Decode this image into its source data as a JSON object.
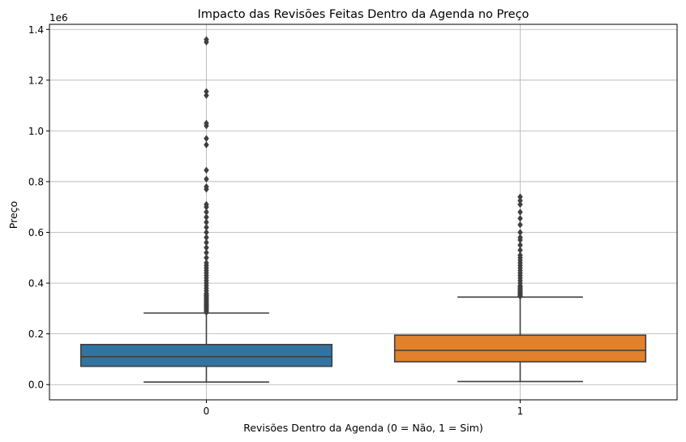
{
  "chart_data": {
    "type": "box",
    "title": "Impacto das Revisões Feitas Dentro da Agenda no Preço",
    "xlabel": "Revisões Dentro da Agenda (0 = Não, 1 = Sim)",
    "ylabel": "Preço",
    "y_offset_label": "1e6",
    "categories": [
      "0",
      "1"
    ],
    "ylim": [
      -0.06,
      1.42
    ],
    "yticks": [
      0.0,
      0.2,
      0.4,
      0.6,
      0.8,
      1.0,
      1.2,
      1.4
    ],
    "ytick_labels": [
      "0.0",
      "0.2",
      "0.4",
      "0.6",
      "0.8",
      "1.0",
      "1.2",
      "1.4"
    ],
    "grid": true,
    "boxes": [
      {
        "category": "0",
        "color": "#3274a1",
        "whisker_low": 0.01,
        "q1": 0.072,
        "median": 0.11,
        "q3": 0.158,
        "whisker_high": 0.282,
        "outliers": [
          0.285,
          0.29,
          0.295,
          0.3,
          0.305,
          0.31,
          0.315,
          0.32,
          0.325,
          0.33,
          0.335,
          0.34,
          0.345,
          0.35,
          0.355,
          0.36,
          0.37,
          0.38,
          0.39,
          0.4,
          0.41,
          0.42,
          0.43,
          0.44,
          0.45,
          0.46,
          0.47,
          0.48,
          0.5,
          0.52,
          0.54,
          0.56,
          0.58,
          0.6,
          0.62,
          0.64,
          0.66,
          0.68,
          0.7,
          0.71,
          0.77,
          0.78,
          0.81,
          0.845,
          0.945,
          0.97,
          1.02,
          1.03,
          1.14,
          1.155,
          1.35,
          1.36
        ]
      },
      {
        "category": "1",
        "color": "#e1812c",
        "whisker_low": 0.012,
        "q1": 0.09,
        "median": 0.135,
        "q3": 0.195,
        "whisker_high": 0.345,
        "outliers": [
          0.348,
          0.352,
          0.356,
          0.36,
          0.365,
          0.37,
          0.375,
          0.38,
          0.385,
          0.39,
          0.4,
          0.41,
          0.42,
          0.43,
          0.44,
          0.45,
          0.46,
          0.47,
          0.48,
          0.49,
          0.5,
          0.51,
          0.53,
          0.55,
          0.57,
          0.58,
          0.6,
          0.63,
          0.655,
          0.68,
          0.71,
          0.725,
          0.74
        ]
      }
    ]
  }
}
